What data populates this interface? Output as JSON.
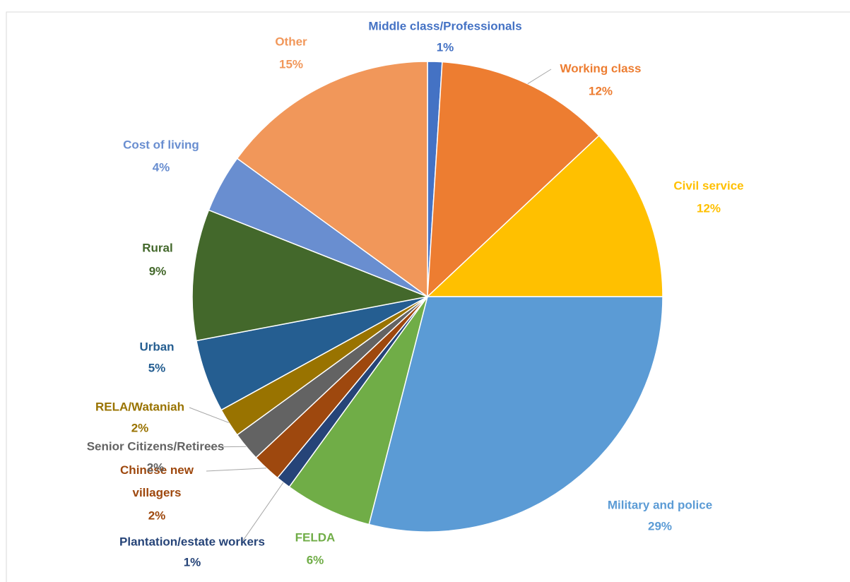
{
  "chart_data": {
    "type": "pie",
    "categories": [
      "Middle class/Professionals",
      "Working class",
      "Civil service",
      "Military and police",
      "FELDA",
      "Plantation/estate workers",
      "Chinese new villagers",
      "Senior Citizens/Retirees",
      "RELA/Wataniah",
      "Urban",
      "Rural",
      "Cost of living",
      "Other"
    ],
    "values": [
      1,
      12,
      12,
      29,
      6,
      1,
      2,
      2,
      2,
      5,
      9,
      4,
      15
    ],
    "value_labels": [
      "1%",
      "12%",
      "12%",
      "29%",
      "6%",
      "1%",
      "2%",
      "2%",
      "2%",
      "5%",
      "9%",
      "4%",
      "15%"
    ],
    "colors": [
      "#4472c4",
      "#ed7d31",
      "#ffc000",
      "#5b9bd5",
      "#70ad47",
      "#264478",
      "#9e480e",
      "#636363",
      "#997300",
      "#255e91",
      "#43682b",
      "#698ed0",
      "#f1975a"
    ]
  }
}
